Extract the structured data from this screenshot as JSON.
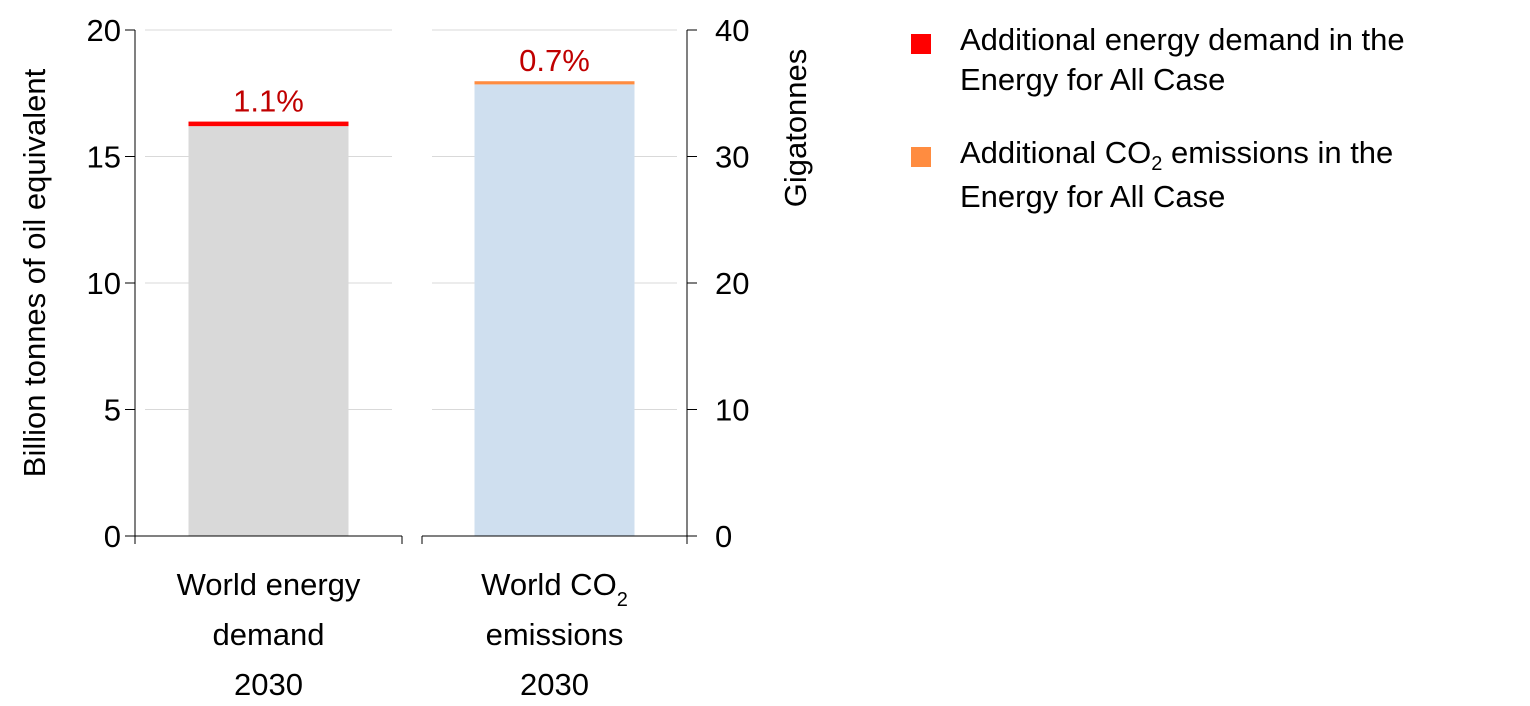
{
  "chart_data": {
    "type": "bar",
    "categories": [
      [
        "World energy",
        "demand",
        "2030"
      ],
      [
        "World CO2",
        "emissions",
        "2030"
      ]
    ],
    "left_axis": {
      "label": "Billion tonnes of oil equivalent",
      "ylim": [
        0,
        20
      ],
      "ticks": [
        0,
        5,
        10,
        15,
        20
      ]
    },
    "right_axis": {
      "label": "Gigatonnes",
      "ylim": [
        0,
        40
      ],
      "ticks": [
        0,
        10,
        20,
        30,
        40
      ]
    },
    "bars": [
      {
        "category_index": 0,
        "axis": "left",
        "base_value": 16.2,
        "additional_value": 0.18,
        "base_color": "#d9d9d9",
        "additional_color": "#ff0000",
        "label": "1.1%",
        "label_color": "#c00000"
      },
      {
        "category_index": 1,
        "axis": "right",
        "base_value": 35.7,
        "additional_value": 0.25,
        "base_color": "#cfdfef",
        "additional_color": "#ff8c40",
        "label": "0.7%",
        "label_color": "#c00000"
      }
    ],
    "grid": true,
    "grid_color": "#d9d9d9",
    "legend_position": "right",
    "series": [
      {
        "name_prefix": "Additional energy demand in the",
        "name_line2": "Energy for All Case",
        "color": "#ff0000"
      },
      {
        "name_prefix": "Additional CO",
        "name_sub": "2",
        "name_suffix": " emissions in the",
        "name_line2": "Energy for All Case",
        "color": "#ff8c40"
      }
    ]
  }
}
